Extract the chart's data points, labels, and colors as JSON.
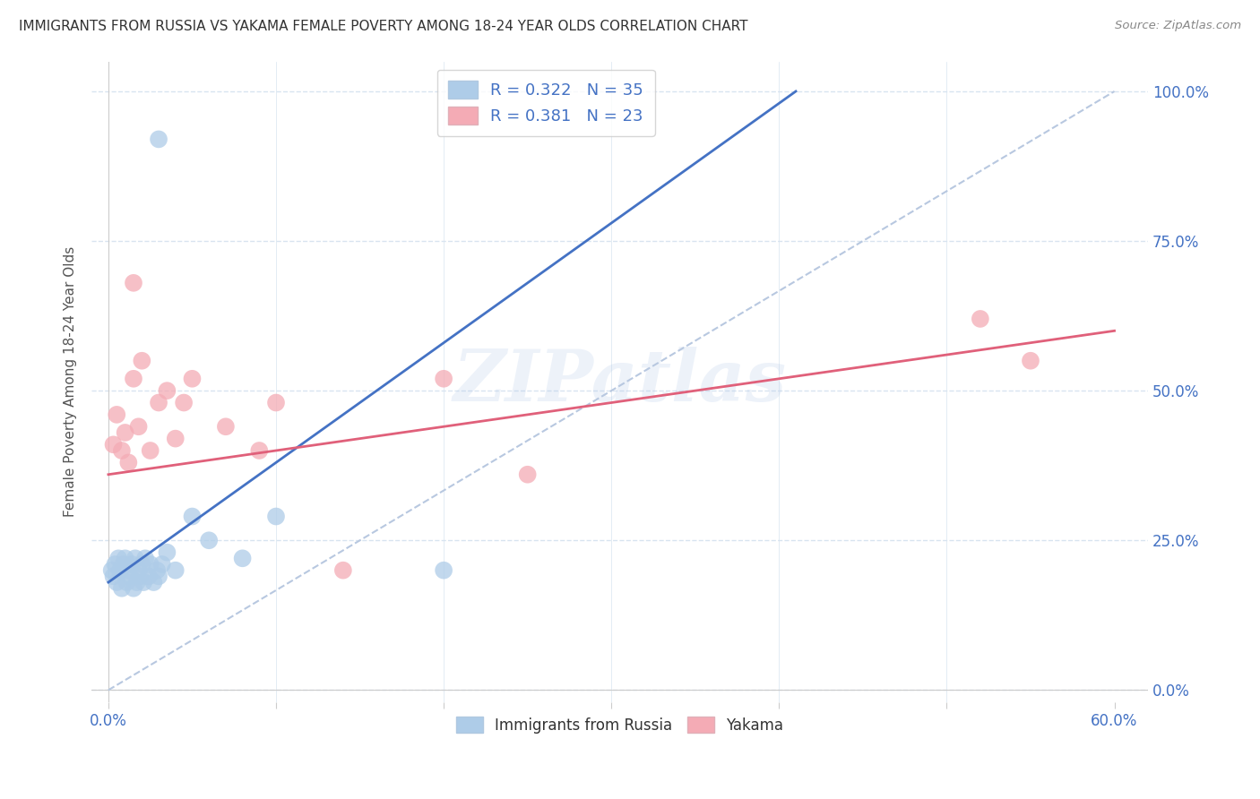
{
  "title": "IMMIGRANTS FROM RUSSIA VS YAKAMA FEMALE POVERTY AMONG 18-24 YEAR OLDS CORRELATION CHART",
  "source": "Source: ZipAtlas.com",
  "ylabel": "Female Poverty Among 18-24 Year Olds",
  "legend1_label": "Immigrants from Russia",
  "legend2_label": "Yakama",
  "R1": 0.322,
  "N1": 35,
  "R2": 0.381,
  "N2": 23,
  "color1": "#aecce8",
  "color2": "#f4abb5",
  "line1_color": "#4472c4",
  "line2_color": "#e0607a",
  "ref_line_color": "#b8c8e0",
  "xlim": [
    0.0,
    60.0
  ],
  "ylim": [
    0.0,
    100.0
  ],
  "x_tick_positions": [
    0.0,
    10.0,
    20.0,
    30.0,
    40.0,
    50.0,
    60.0
  ],
  "y_tick_positions": [
    0.0,
    25.0,
    50.0,
    75.0,
    100.0
  ],
  "blue_scatter_x": [
    0.2,
    0.3,
    0.4,
    0.5,
    0.6,
    0.7,
    0.8,
    0.9,
    1.0,
    1.1,
    1.2,
    1.3,
    1.4,
    1.5,
    1.6,
    1.7,
    1.8,
    1.9,
    2.0,
    2.1,
    2.2,
    2.4,
    2.5,
    2.7,
    2.9,
    3.0,
    3.2,
    3.5,
    4.0,
    5.0,
    6.0,
    8.0,
    10.0,
    20.0,
    3.0
  ],
  "blue_scatter_y": [
    20,
    19,
    21,
    18,
    22,
    20,
    17,
    21,
    22,
    18,
    20,
    19,
    21,
    17,
    22,
    18,
    20,
    19,
    21,
    18,
    22,
    19,
    21,
    18,
    20,
    19,
    21,
    23,
    20,
    29,
    25,
    22,
    29,
    20,
    92
  ],
  "pink_scatter_x": [
    0.3,
    0.5,
    0.8,
    1.0,
    1.2,
    1.5,
    1.8,
    2.0,
    2.5,
    3.0,
    3.5,
    4.0,
    4.5,
    5.0,
    7.0,
    9.0,
    10.0,
    14.0,
    20.0,
    25.0,
    52.0,
    55.0,
    1.5
  ],
  "pink_scatter_y": [
    41,
    46,
    40,
    43,
    38,
    52,
    44,
    55,
    40,
    48,
    50,
    42,
    48,
    52,
    44,
    40,
    48,
    20,
    52,
    36,
    62,
    55,
    68
  ],
  "blue_line_x0": 0.0,
  "blue_line_y0": 18.0,
  "blue_line_x1": 20.0,
  "blue_line_y1": 58.0,
  "pink_line_x0": 0.0,
  "pink_line_y0": 36.0,
  "pink_line_x1": 60.0,
  "pink_line_y1": 60.0,
  "ref_line_x": [
    0.0,
    60.0
  ],
  "ref_line_y": [
    0.0,
    100.0
  ],
  "watermark": "ZIPatlas",
  "background_color": "#ffffff",
  "grid_color": "#d8e4f0",
  "title_color": "#333333",
  "source_color": "#888888",
  "axis_label_color": "#555555",
  "tick_color_blue": "#4472c4",
  "tick_color_dark": "#333333"
}
